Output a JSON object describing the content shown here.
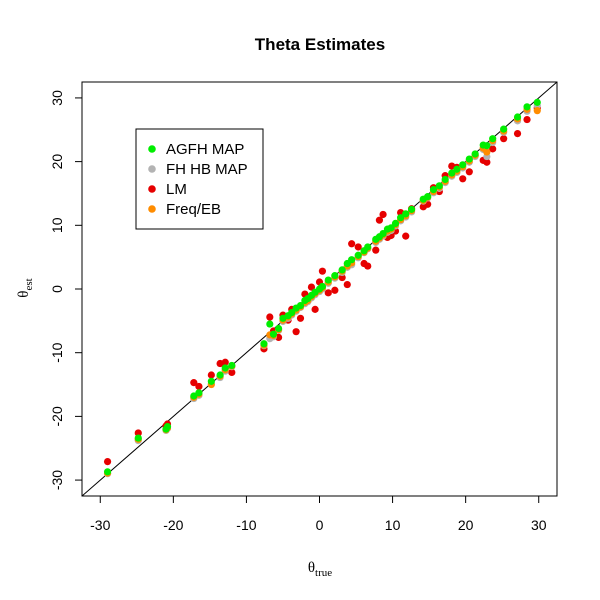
{
  "chart_data": {
    "type": "scatter",
    "title": "Theta Estimates",
    "xlabel": {
      "main": "θ",
      "sub": "true"
    },
    "ylabel": {
      "main": "θ",
      "sub": "est"
    },
    "xlim": [
      -32.5,
      32.5
    ],
    "ylim": [
      -32.5,
      32.5
    ],
    "xticks": [
      -30,
      -20,
      -10,
      0,
      10,
      20,
      30
    ],
    "yticks": [
      -30,
      -20,
      -10,
      0,
      10,
      20,
      30
    ],
    "grid": false,
    "legend_position": "top-left",
    "reference_line": {
      "slope": 1,
      "intercept": 0,
      "color": "#000000"
    },
    "x": [
      -29.0,
      -24.8,
      -21.0,
      -20.8,
      -17.2,
      -16.5,
      -14.8,
      -13.6,
      -12.9,
      -12.0,
      -7.6,
      -6.8,
      -6.3,
      -5.6,
      -5.0,
      -4.3,
      -3.8,
      -3.2,
      -2.6,
      -2.0,
      -1.6,
      -1.1,
      -0.6,
      0.0,
      0.4,
      1.2,
      2.1,
      3.1,
      3.8,
      4.4,
      5.3,
      6.1,
      6.6,
      7.7,
      8.2,
      8.7,
      9.3,
      9.8,
      10.4,
      11.1,
      11.8,
      12.6,
      14.2,
      14.8,
      15.6,
      16.4,
      17.2,
      18.1,
      18.8,
      19.6,
      20.5,
      21.3,
      22.4,
      22.9,
      23.7,
      25.2,
      27.1,
      28.4,
      29.8
    ],
    "series": [
      {
        "name": "AGFH MAP",
        "color": "#00ee00",
        "values": [
          -28.7,
          -23.4,
          -22.0,
          -21.6,
          -16.8,
          -16.3,
          -14.5,
          -13.5,
          -12.4,
          -12.0,
          -8.6,
          -5.5,
          -7.1,
          -6.2,
          -4.6,
          -4.2,
          -3.7,
          -3.0,
          -2.6,
          -1.8,
          -1.5,
          -1.0,
          -0.5,
          0.0,
          0.4,
          1.4,
          2.1,
          3.0,
          4.0,
          4.6,
          5.3,
          6.0,
          6.6,
          7.8,
          8.2,
          8.7,
          9.4,
          9.6,
          10.3,
          11.2,
          11.8,
          12.5,
          14.1,
          14.5,
          15.6,
          16.2,
          17.2,
          18.2,
          18.8,
          19.5,
          20.4,
          21.2,
          22.6,
          22.5,
          23.6,
          25.1,
          27.0,
          28.6,
          29.3
        ]
      },
      {
        "name": "FH HB MAP",
        "color": "#b3b3b3",
        "values": [
          -29.0,
          -23.8,
          -22.2,
          -21.9,
          -17.2,
          -16.7,
          -14.9,
          -13.9,
          -12.9,
          -12.2,
          -8.9,
          -7.8,
          -7.5,
          -6.5,
          -5.1,
          -4.6,
          -4.1,
          -3.5,
          -2.9,
          -2.3,
          -2.0,
          -1.4,
          -0.9,
          -0.4,
          0.0,
          0.9,
          1.7,
          2.6,
          3.4,
          3.8,
          4.9,
          5.7,
          6.3,
          7.3,
          7.8,
          8.3,
          8.9,
          9.2,
          9.9,
          10.7,
          11.3,
          12.1,
          13.8,
          14.3,
          15.1,
          15.8,
          16.7,
          17.7,
          18.3,
          19.0,
          19.9,
          20.8,
          21.9,
          20.8,
          23.0,
          24.6,
          26.4,
          27.9,
          28.8
        ]
      },
      {
        "name": "LM",
        "color": "#e60000",
        "values": [
          -27.1,
          -22.6,
          -21.5,
          -21.2,
          -14.7,
          -15.3,
          -13.5,
          -11.7,
          -11.5,
          -13.1,
          -9.4,
          -4.4,
          -6.6,
          -7.6,
          -4.1,
          -4.9,
          -3.2,
          -6.7,
          -4.6,
          -0.8,
          -1.9,
          0.3,
          -3.2,
          1.1,
          2.8,
          -0.6,
          -0.2,
          1.8,
          0.7,
          7.1,
          6.6,
          4.0,
          3.6,
          6.1,
          10.8,
          11.7,
          8.1,
          8.4,
          9.1,
          12.0,
          8.3,
          12.6,
          12.9,
          13.3,
          15.9,
          15.3,
          17.8,
          19.3,
          19.1,
          17.3,
          18.4,
          20.9,
          20.2,
          19.9,
          22.0,
          23.6,
          24.4,
          26.6,
          28.4
        ]
      },
      {
        "name": "Freq/EB",
        "color": "#ff8c00",
        "values": [
          -28.9,
          -23.6,
          -22.1,
          -21.8,
          -17.0,
          -16.5,
          -15.0,
          -13.7,
          -12.7,
          -12.1,
          -8.8,
          -7.2,
          -7.3,
          -6.4,
          -4.9,
          -4.4,
          -3.9,
          -3.3,
          -2.8,
          -2.1,
          -1.8,
          -1.2,
          -0.7,
          -0.2,
          0.2,
          1.1,
          1.9,
          2.8,
          3.6,
          4.1,
          5.1,
          5.8,
          6.4,
          7.5,
          8.0,
          8.5,
          9.1,
          9.4,
          10.1,
          10.9,
          11.5,
          12.3,
          13.9,
          14.4,
          15.3,
          16.0,
          16.9,
          17.9,
          18.5,
          19.2,
          20.1,
          21.0,
          22.1,
          21.5,
          23.3,
          24.8,
          26.7,
          28.2,
          28.0
        ]
      }
    ]
  }
}
